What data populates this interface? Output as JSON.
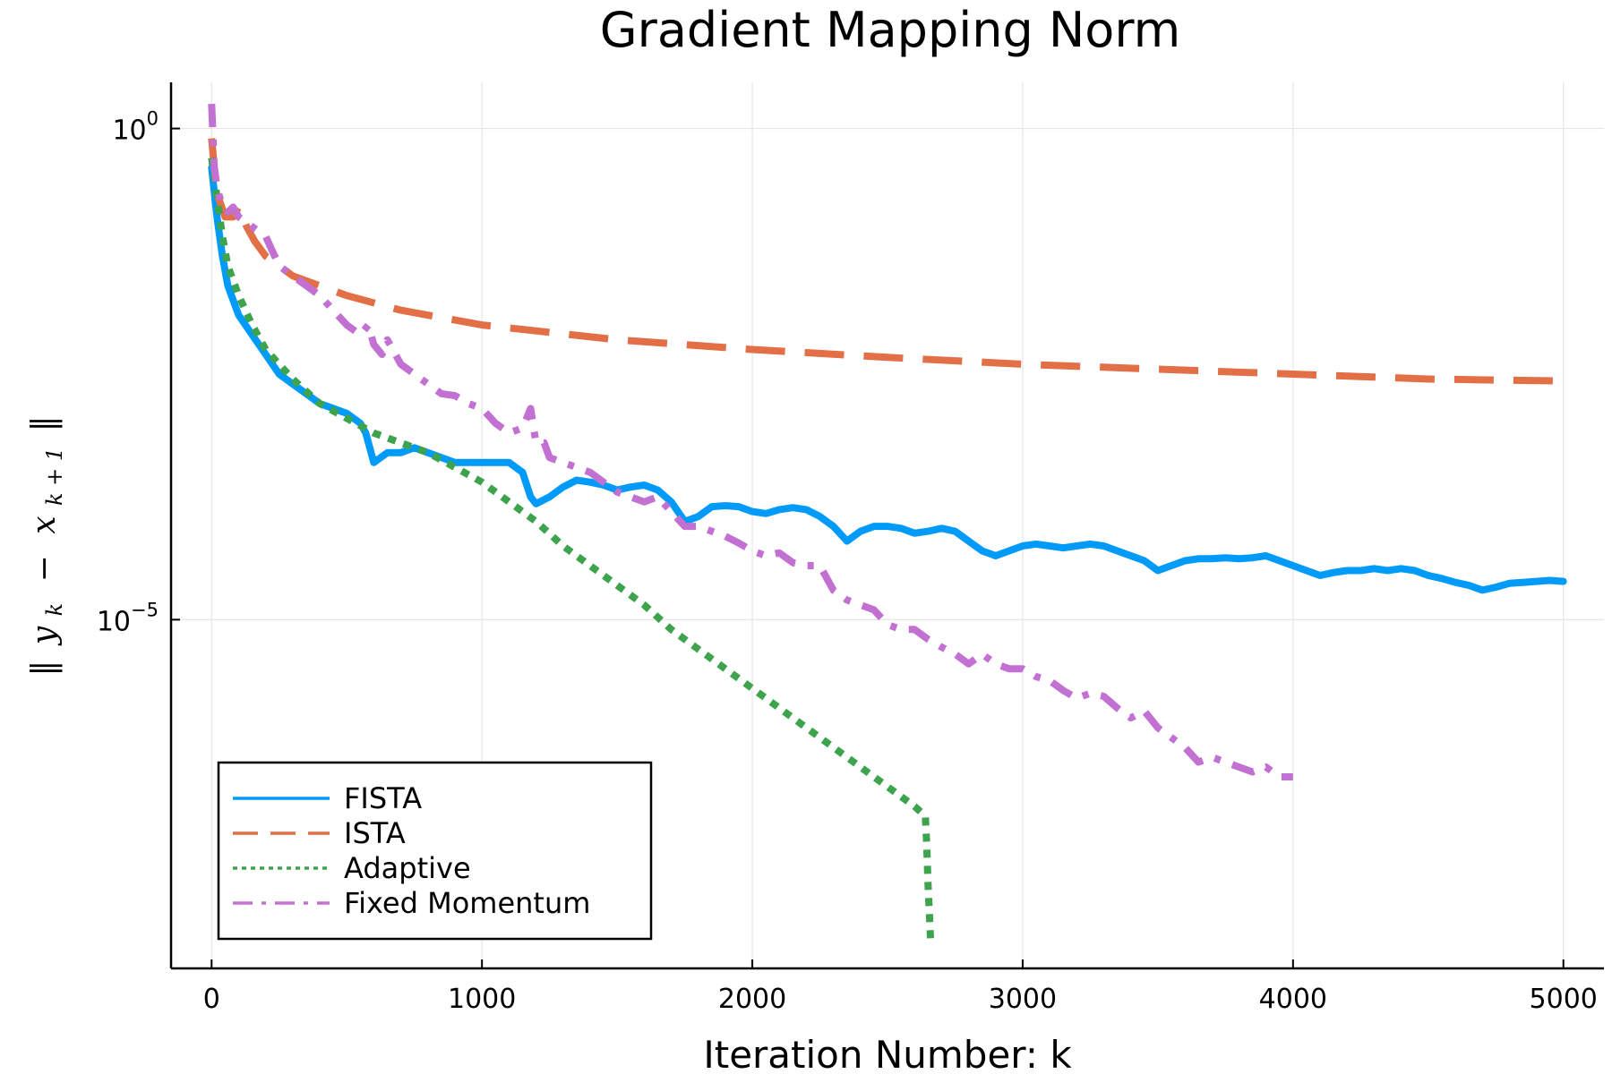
{
  "chart_data": {
    "type": "line",
    "title": "Gradient Mapping Norm",
    "xlabel": "Iteration Number: k",
    "ylabel": "‖ y_k − x_{k+1} ‖",
    "ylabel_parts": {
      "bar_open": "‖",
      "y": "y",
      "k": "k",
      "minus": "−",
      "x": "x",
      "sub": "k + 1",
      "bar_close": "‖"
    },
    "yscale": "log10",
    "xlim": [
      -150,
      5150
    ],
    "ylim_exp": [
      -8.55,
      0.47
    ],
    "xticks": [
      0,
      1000,
      2000,
      3000,
      4000,
      5000
    ],
    "xtick_labels": [
      "0",
      "1000",
      "2000",
      "3000",
      "4000",
      "5000"
    ],
    "yticks_exp": [
      0,
      -5
    ],
    "ytick_labels": [
      {
        "base": "10",
        "exp": "0"
      },
      {
        "base": "10",
        "exp": "−5"
      }
    ],
    "grid": true,
    "legend_position": "bottom-left",
    "series": [
      {
        "name": "FISTA",
        "color": "#009af9",
        "dash": "solid",
        "x": [
          0,
          20,
          40,
          60,
          100,
          150,
          200,
          250,
          300,
          350,
          400,
          450,
          500,
          550,
          570,
          600,
          650,
          700,
          750,
          800,
          900,
          1000,
          1100,
          1150,
          1180,
          1200,
          1250,
          1300,
          1350,
          1400,
          1450,
          1500,
          1550,
          1600,
          1650,
          1700,
          1750,
          1800,
          1850,
          1900,
          1950,
          2000,
          2050,
          2100,
          2150,
          2200,
          2250,
          2300,
          2350,
          2400,
          2450,
          2500,
          2550,
          2600,
          2650,
          2700,
          2750,
          2800,
          2850,
          2900,
          2950,
          3000,
          3050,
          3100,
          3150,
          3200,
          3250,
          3300,
          3350,
          3400,
          3450,
          3500,
          3550,
          3600,
          3650,
          3700,
          3750,
          3800,
          3850,
          3900,
          3950,
          4000,
          4050,
          4100,
          4150,
          4200,
          4250,
          4300,
          4350,
          4400,
          4450,
          4500,
          4550,
          4600,
          4650,
          4700,
          4750,
          4800,
          4850,
          4900,
          4950,
          5000
        ],
        "y_exp": [
          -0.4,
          -0.9,
          -1.3,
          -1.6,
          -1.9,
          -2.1,
          -2.3,
          -2.5,
          -2.6,
          -2.7,
          -2.8,
          -2.85,
          -2.9,
          -3.0,
          -3.1,
          -3.4,
          -3.3,
          -3.3,
          -3.25,
          -3.3,
          -3.4,
          -3.4,
          -3.4,
          -3.5,
          -3.75,
          -3.82,
          -3.75,
          -3.65,
          -3.58,
          -3.6,
          -3.63,
          -3.68,
          -3.65,
          -3.63,
          -3.68,
          -3.8,
          -4.0,
          -3.95,
          -3.85,
          -3.84,
          -3.85,
          -3.9,
          -3.92,
          -3.88,
          -3.86,
          -3.88,
          -3.95,
          -4.05,
          -4.2,
          -4.1,
          -4.05,
          -4.05,
          -4.07,
          -4.12,
          -4.1,
          -4.07,
          -4.1,
          -4.2,
          -4.3,
          -4.35,
          -4.3,
          -4.25,
          -4.23,
          -4.25,
          -4.27,
          -4.25,
          -4.23,
          -4.25,
          -4.3,
          -4.35,
          -4.4,
          -4.5,
          -4.45,
          -4.4,
          -4.38,
          -4.38,
          -4.37,
          -4.38,
          -4.37,
          -4.35,
          -4.4,
          -4.45,
          -4.5,
          -4.55,
          -4.52,
          -4.5,
          -4.5,
          -4.48,
          -4.5,
          -4.48,
          -4.5,
          -4.55,
          -4.58,
          -4.62,
          -4.65,
          -4.7,
          -4.67,
          -4.63,
          -4.62,
          -4.61,
          -4.6,
          -4.61
        ]
      },
      {
        "name": "ISTA",
        "color": "#e26f46",
        "dash": "dashed",
        "x": [
          0,
          10,
          25,
          50,
          80,
          100,
          130,
          160,
          200,
          250,
          300,
          400,
          500,
          700,
          1000,
          1500,
          2000,
          2500,
          3000,
          3500,
          4000,
          4500,
          5000
        ],
        "y_exp": [
          -0.1,
          -0.4,
          -0.7,
          -0.9,
          -0.9,
          -0.8,
          -1.0,
          -1.15,
          -1.3,
          -1.4,
          -1.5,
          -1.6,
          -1.7,
          -1.85,
          -2.0,
          -2.15,
          -2.25,
          -2.33,
          -2.4,
          -2.45,
          -2.5,
          -2.55,
          -2.57
        ]
      },
      {
        "name": "Adaptive",
        "color": "#3da44d",
        "dash": "dotted",
        "x": [
          0,
          20,
          40,
          60,
          100,
          150,
          200,
          300,
          400,
          500,
          600,
          700,
          800,
          900,
          1000,
          1100,
          1200,
          1300,
          1400,
          1500,
          1600,
          1700,
          1800,
          1900,
          2000,
          2100,
          2200,
          2300,
          2400,
          2500,
          2600,
          2640,
          2645,
          2650,
          2655,
          2660
        ],
        "y_exp": [
          -0.3,
          -0.7,
          -1.1,
          -1.4,
          -1.7,
          -2.0,
          -2.25,
          -2.55,
          -2.8,
          -2.95,
          -3.1,
          -3.2,
          -3.3,
          -3.45,
          -3.6,
          -3.8,
          -4.0,
          -4.25,
          -4.45,
          -4.65,
          -4.85,
          -5.1,
          -5.3,
          -5.5,
          -5.7,
          -5.9,
          -6.1,
          -6.3,
          -6.5,
          -6.7,
          -6.9,
          -7.0,
          -7.3,
          -7.7,
          -8.0,
          -8.3
        ]
      },
      {
        "name": "Fixed Momentum",
        "color": "#c271d2",
        "dash": "dashdot",
        "x": [
          0,
          10,
          20,
          40,
          60,
          80,
          100,
          150,
          200,
          250,
          300,
          350,
          400,
          450,
          500,
          550,
          580,
          600,
          630,
          650,
          700,
          750,
          800,
          850,
          900,
          950,
          1000,
          1050,
          1100,
          1150,
          1180,
          1200,
          1230,
          1250,
          1300,
          1350,
          1400,
          1450,
          1500,
          1550,
          1600,
          1650,
          1700,
          1750,
          1800,
          1850,
          1900,
          1950,
          2000,
          2050,
          2100,
          2150,
          2200,
          2250,
          2300,
          2350,
          2400,
          2450,
          2500,
          2550,
          2600,
          2650,
          2700,
          2750,
          2800,
          2850,
          2900,
          2950,
          3000,
          3050,
          3100,
          3150,
          3200,
          3250,
          3300,
          3350,
          3400,
          3450,
          3500,
          3550,
          3600,
          3650,
          3700,
          3750,
          3800,
          3850,
          3900,
          3950,
          4000
        ],
        "y_exp": [
          0.25,
          -0.4,
          -0.6,
          -0.8,
          -0.85,
          -0.8,
          -0.9,
          -1.0,
          -1.1,
          -1.4,
          -1.5,
          -1.6,
          -1.7,
          -1.85,
          -2.0,
          -2.1,
          -2.0,
          -2.2,
          -2.3,
          -2.15,
          -2.4,
          -2.5,
          -2.6,
          -2.7,
          -2.72,
          -2.8,
          -2.85,
          -3.0,
          -3.1,
          -3.05,
          -2.85,
          -3.2,
          -3.2,
          -3.35,
          -3.4,
          -3.45,
          -3.5,
          -3.6,
          -3.7,
          -3.75,
          -3.8,
          -3.75,
          -3.9,
          -4.05,
          -4.05,
          -4.1,
          -4.15,
          -4.22,
          -4.3,
          -4.35,
          -4.32,
          -4.42,
          -4.45,
          -4.45,
          -4.7,
          -4.8,
          -4.85,
          -4.9,
          -5.05,
          -5.1,
          -5.1,
          -5.2,
          -5.28,
          -5.35,
          -5.45,
          -5.35,
          -5.45,
          -5.5,
          -5.5,
          -5.58,
          -5.62,
          -5.72,
          -5.8,
          -5.75,
          -5.78,
          -5.9,
          -6.0,
          -5.93,
          -6.1,
          -6.2,
          -6.3,
          -6.45,
          -6.4,
          -6.45,
          -6.5,
          -6.55,
          -6.5,
          -6.6,
          -6.6
        ]
      }
    ]
  }
}
